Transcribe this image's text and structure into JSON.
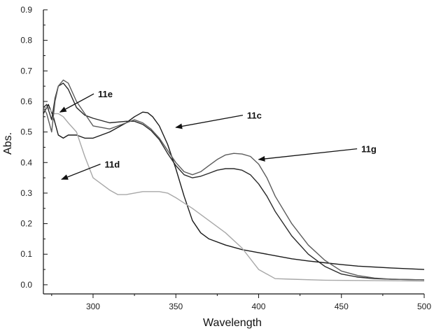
{
  "chart_data": {
    "type": "line",
    "title": "",
    "xlabel": "Wavelength",
    "ylabel": "Abs.",
    "xlim": [
      270,
      500
    ],
    "ylim": [
      -0.03,
      0.9
    ],
    "xticks": [
      300,
      350,
      400,
      450,
      500
    ],
    "xtick_labels": [
      "300",
      "350",
      "400",
      "450",
      "500"
    ],
    "yticks": [
      0.0,
      0.1,
      0.2,
      0.3,
      0.4,
      0.5,
      0.6,
      0.7,
      0.8,
      0.9
    ],
    "ytick_labels": [
      "0.0",
      "0.1",
      "0.2",
      "0.3",
      "0.4",
      "0.5",
      "0.6",
      "0.7",
      "0.8",
      "0.9"
    ],
    "grid": false,
    "legend": "none",
    "series": [
      {
        "name": "11c",
        "color": "#1a1a1a",
        "x": [
          270,
          273,
          276,
          279,
          282,
          285,
          290,
          295,
          300,
          310,
          320,
          325,
          330,
          333,
          336,
          340,
          345,
          350,
          355,
          360,
          365,
          370,
          380,
          390,
          400,
          410,
          420,
          430,
          440,
          450,
          460,
          480,
          500
        ],
        "y": [
          0.56,
          0.59,
          0.55,
          0.49,
          0.48,
          0.49,
          0.49,
          0.48,
          0.48,
          0.5,
          0.53,
          0.55,
          0.565,
          0.563,
          0.55,
          0.52,
          0.46,
          0.38,
          0.29,
          0.21,
          0.17,
          0.15,
          0.13,
          0.115,
          0.105,
          0.095,
          0.085,
          0.078,
          0.072,
          0.066,
          0.061,
          0.055,
          0.05
        ]
      },
      {
        "name": "11d",
        "color": "#a8a8a8",
        "x": [
          270,
          273,
          276,
          279,
          282,
          285,
          290,
          295,
          300,
          305,
          310,
          315,
          320,
          330,
          340,
          345,
          350,
          360,
          370,
          380,
          390,
          400,
          410,
          420,
          440,
          460,
          480,
          500
        ],
        "y": [
          0.58,
          0.58,
          0.56,
          0.56,
          0.55,
          0.53,
          0.5,
          0.42,
          0.35,
          0.33,
          0.31,
          0.295,
          0.295,
          0.305,
          0.305,
          0.3,
          0.285,
          0.25,
          0.21,
          0.17,
          0.12,
          0.05,
          0.02,
          0.018,
          0.015,
          0.014,
          0.013,
          0.012
        ]
      },
      {
        "name": "11e",
        "color": "#2a2a2a",
        "x": [
          270,
          272,
          275,
          277,
          279,
          282,
          285,
          290,
          295,
          300,
          310,
          320,
          325,
          330,
          335,
          340,
          345,
          350,
          355,
          360,
          365,
          370,
          375,
          380,
          385,
          390,
          395,
          400,
          405,
          410,
          420,
          430,
          440,
          450,
          460,
          470,
          480,
          500
        ],
        "y": [
          0.58,
          0.59,
          0.54,
          0.61,
          0.65,
          0.66,
          0.64,
          0.58,
          0.555,
          0.545,
          0.53,
          0.535,
          0.535,
          0.525,
          0.505,
          0.475,
          0.43,
          0.39,
          0.36,
          0.35,
          0.355,
          0.365,
          0.375,
          0.38,
          0.38,
          0.375,
          0.36,
          0.33,
          0.29,
          0.24,
          0.16,
          0.1,
          0.06,
          0.035,
          0.025,
          0.02,
          0.018,
          0.016
        ]
      },
      {
        "name": "11g",
        "color": "#5c5c5c",
        "x": [
          270,
          272,
          275,
          277,
          279,
          282,
          285,
          290,
          295,
          300,
          310,
          320,
          325,
          330,
          335,
          340,
          345,
          350,
          355,
          360,
          365,
          370,
          375,
          380,
          385,
          390,
          395,
          400,
          405,
          410,
          420,
          430,
          440,
          450,
          460,
          470,
          480,
          500
        ],
        "y": [
          0.58,
          0.56,
          0.5,
          0.6,
          0.65,
          0.67,
          0.66,
          0.6,
          0.56,
          0.52,
          0.51,
          0.53,
          0.54,
          0.53,
          0.51,
          0.48,
          0.44,
          0.4,
          0.37,
          0.36,
          0.37,
          0.39,
          0.41,
          0.425,
          0.43,
          0.428,
          0.42,
          0.395,
          0.35,
          0.29,
          0.2,
          0.13,
          0.08,
          0.045,
          0.03,
          0.022,
          0.018,
          0.016
        ]
      }
    ],
    "annotations": [
      {
        "text": "11e",
        "series": "11e",
        "text_x": 303,
        "text_y": 0.625,
        "arrow_x": 280,
        "arrow_y": 0.565
      },
      {
        "text": "11c",
        "series": "11c",
        "text_x": 393,
        "text_y": 0.555,
        "arrow_x": 350,
        "arrow_y": 0.515
      },
      {
        "text": "11d",
        "series": "11d",
        "text_x": 307,
        "text_y": 0.395,
        "arrow_x": 281,
        "arrow_y": 0.345
      },
      {
        "text": "11g",
        "series": "11g",
        "text_x": 462,
        "text_y": 0.445,
        "arrow_x": 400,
        "arrow_y": 0.41
      }
    ]
  }
}
